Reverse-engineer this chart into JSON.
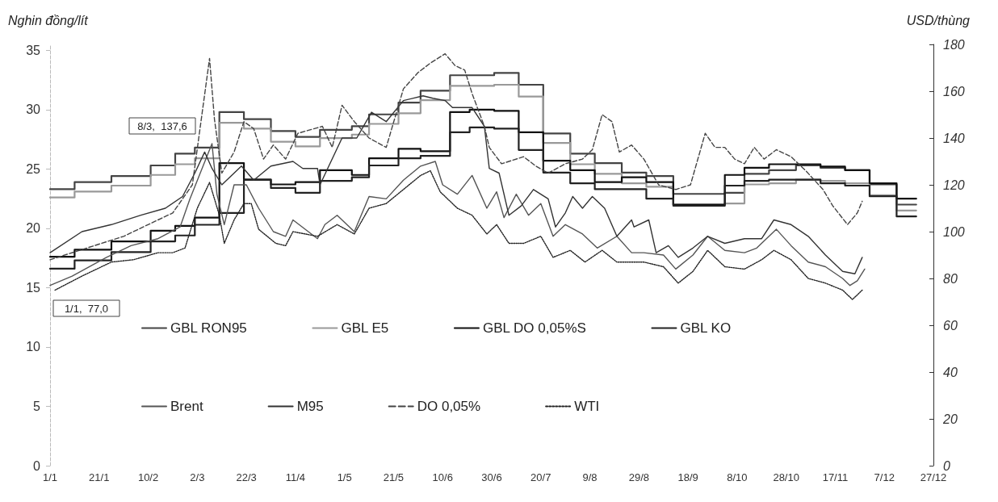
{
  "chart_data": {
    "type": "line",
    "ylabel": "Nghin đồng/lít",
    "y2label": "USD/thùng",
    "marker": "none",
    "legend": "bottom",
    "grid": false,
    "xlim": [
      "--01-01",
      "--12-27"
    ],
    "xticks": [
      {
        "value": "--01-01",
        "label": "1/1"
      },
      {
        "value": "--01-21",
        "label": "21/1"
      },
      {
        "value": "--02-10",
        "label": "10/2"
      },
      {
        "value": "--03-02",
        "label": "2/3"
      },
      {
        "value": "--03-22",
        "label": "22/3"
      },
      {
        "value": "--04-11",
        "label": "11/4"
      },
      {
        "value": "--05-01",
        "label": "1/5"
      },
      {
        "value": "--05-21",
        "label": "21/5"
      },
      {
        "value": "--06-10",
        "label": "10/6"
      },
      {
        "value": "--06-30",
        "label": "30/6"
      },
      {
        "value": "--07-20",
        "label": "20/7"
      },
      {
        "value": "--08-09",
        "label": "9/8"
      },
      {
        "value": "--08-29",
        "label": "29/8"
      },
      {
        "value": "--09-18",
        "label": "18/9"
      },
      {
        "value": "--10-08",
        "label": "8/10"
      },
      {
        "value": "--10-28",
        "label": "28/10"
      },
      {
        "value": "--11-17",
        "label": "17/11"
      },
      {
        "value": "--12-07",
        "label": "7/12"
      },
      {
        "value": "--12-27",
        "label": "27/12"
      }
    ],
    "ylim": [
      0,
      35.5
    ],
    "yticks": [
      0,
      5,
      10,
      15,
      20,
      25,
      30,
      35
    ],
    "y2lim": [
      0,
      180
    ],
    "y2ticks": [
      0,
      20,
      40,
      60,
      80,
      100,
      120,
      140,
      160,
      180
    ],
    "annotations": [
      "1/1,  77,0",
      "8/3,  137,6"
    ],
    "series": [
      {
        "name": "GBL RON95",
        "type": "step",
        "color": "#444444",
        "line_style": "solid",
        "x": [
          "--01-01",
          "--01-11",
          "--01-26",
          "--02-11",
          "--02-21",
          "--03-01",
          "--03-11",
          "--03-21",
          "--04-01",
          "--04-11",
          "--04-21",
          "--05-04",
          "--05-11",
          "--05-23",
          "--06-01",
          "--06-13",
          "--06-21",
          "--07-01",
          "--07-11",
          "--07-21",
          "--08-01",
          "--08-11",
          "--08-22",
          "--09-01",
          "--09-12",
          "--09-21",
          "--10-03",
          "--10-11",
          "--10-21",
          "--11-01",
          "--11-11",
          "--11-21",
          "--12-01",
          "--12-12",
          "--12-20"
        ],
        "values": [
          23.3,
          23.9,
          24.4,
          25.3,
          26.3,
          26.8,
          29.8,
          29.2,
          28.2,
          27.7,
          28.3,
          28.6,
          29.6,
          30.6,
          31.6,
          32.9,
          32.9,
          33.1,
          32.1,
          28.0,
          26.3,
          25.5,
          24.7,
          24.4,
          22.9,
          22.9,
          23.0,
          24.6,
          24.9,
          25.3,
          25.1,
          24.9,
          23.7,
          22.0,
          22.0
        ]
      },
      {
        "name": "GBL E5",
        "type": "step",
        "color": "#999999",
        "line_style": "solid",
        "x": [
          "--01-01",
          "--01-11",
          "--01-26",
          "--02-11",
          "--02-21",
          "--03-01",
          "--03-11",
          "--03-21",
          "--04-01",
          "--04-11",
          "--04-21",
          "--05-04",
          "--05-11",
          "--05-23",
          "--06-01",
          "--06-13",
          "--06-21",
          "--07-01",
          "--07-11",
          "--07-21",
          "--08-01",
          "--08-11",
          "--08-22",
          "--09-01",
          "--09-12",
          "--09-21",
          "--10-03",
          "--10-11",
          "--10-21",
          "--11-01",
          "--11-11",
          "--11-21",
          "--12-01",
          "--12-12",
          "--12-20"
        ],
        "values": [
          22.6,
          23.1,
          23.6,
          24.5,
          25.4,
          25.9,
          28.9,
          28.4,
          27.3,
          26.9,
          27.6,
          27.9,
          28.8,
          29.7,
          30.8,
          32.0,
          32.0,
          32.1,
          31.1,
          27.2,
          25.4,
          24.6,
          23.8,
          23.5,
          22.0,
          22.0,
          22.1,
          23.7,
          23.8,
          24.1,
          24.0,
          23.8,
          22.8,
          21.5,
          21.5
        ]
      },
      {
        "name": "GBL DO 0,05%S",
        "type": "step",
        "color": "#111111",
        "line_style": "solid",
        "x": [
          "--01-01",
          "--01-11",
          "--01-26",
          "--02-11",
          "--02-21",
          "--03-01",
          "--03-11",
          "--03-21",
          "--04-01",
          "--04-11",
          "--04-21",
          "--05-04",
          "--05-11",
          "--05-23",
          "--06-01",
          "--06-13",
          "--06-21",
          "--07-01",
          "--07-11",
          "--07-21",
          "--08-01",
          "--08-11",
          "--08-22",
          "--09-01",
          "--09-12",
          "--09-21",
          "--10-03",
          "--10-11",
          "--10-21",
          "--11-01",
          "--11-11",
          "--11-21",
          "--12-01",
          "--12-12",
          "--12-20"
        ],
        "values": [
          17.6,
          18.2,
          18.9,
          19.8,
          20.2,
          20.9,
          25.5,
          24.1,
          23.7,
          23.9,
          24.9,
          24.5,
          25.9,
          26.7,
          26.5,
          29.8,
          30.0,
          29.9,
          28.1,
          25.7,
          24.9,
          23.9,
          24.3,
          23.9,
          22.0,
          22.0,
          24.5,
          25.1,
          25.4,
          25.4,
          25.2,
          24.9,
          23.8,
          22.5,
          22.5
        ]
      },
      {
        "name": "GBL KO",
        "type": "step",
        "color": "#222222",
        "line_style": "solid",
        "x": [
          "--01-01",
          "--01-11",
          "--01-26",
          "--02-11",
          "--02-21",
          "--03-01",
          "--03-11",
          "--03-21",
          "--04-01",
          "--04-11",
          "--04-21",
          "--05-04",
          "--05-11",
          "--05-23",
          "--06-01",
          "--06-13",
          "--06-21",
          "--07-01",
          "--07-11",
          "--07-21",
          "--08-01",
          "--08-11",
          "--08-22",
          "--09-01",
          "--09-12",
          "--09-21",
          "--10-03",
          "--10-11",
          "--10-21",
          "--11-01",
          "--11-11",
          "--11-21",
          "--12-01",
          "--12-12",
          "--12-20"
        ],
        "values": [
          16.6,
          17.3,
          18.0,
          18.9,
          19.4,
          20.3,
          21.3,
          24.1,
          23.4,
          23.0,
          24.0,
          24.3,
          25.3,
          25.9,
          26.1,
          28.1,
          28.5,
          28.4,
          26.6,
          24.7,
          23.8,
          23.3,
          23.3,
          22.5,
          21.9,
          21.9,
          23.6,
          24.0,
          24.1,
          24.1,
          23.8,
          23.6,
          22.7,
          21.0,
          21.0
        ]
      },
      {
        "name": "Brent",
        "axis": "y2",
        "color": "#555555",
        "line_style": "solid",
        "x": [
          "--01-01",
          "--01-10",
          "--01-24",
          "--02-03",
          "--02-14",
          "--02-23",
          "--02-27",
          "--03-08",
          "--03-10",
          "--03-13",
          "--03-17",
          "--03-22",
          "--03-27",
          "--04-02",
          "--04-07",
          "--04-10",
          "--04-20",
          "--04-23",
          "--04-28",
          "--05-05",
          "--05-11",
          "--05-18",
          "--05-25",
          "--06-01",
          "--06-07",
          "--06-10",
          "--06-16",
          "--06-22",
          "--06-28",
          "--07-02",
          "--07-05",
          "--07-10",
          "--07-15",
          "--07-20",
          "--07-25",
          "--07-30",
          "--08-06",
          "--08-12",
          "--08-20",
          "--08-26",
          "--08-31",
          "--09-08",
          "--09-13",
          "--09-20",
          "--09-26",
          "--10-03",
          "--10-11",
          "--10-16",
          "--10-24",
          "--10-30",
          "--11-06",
          "--11-13",
          "--11-20",
          "--11-23",
          "--11-26",
          "--11-29"
        ],
        "values": [
          77,
          81,
          89,
          94,
          97,
          102,
          114,
          137.6,
          116,
          103,
          120,
          120,
          110,
          100,
          98,
          105,
          97,
          103,
          107,
          100,
          115,
          114,
          122,
          128,
          130,
          120,
          116,
          124,
          110,
          117,
          106,
          116,
          107,
          112,
          98,
          103,
          99,
          93,
          98,
          91,
          91,
          90,
          84,
          90,
          98,
          92,
          91,
          93,
          101,
          94,
          87,
          85,
          80,
          77,
          79,
          84
        ]
      },
      {
        "name": "M95",
        "axis": "y2",
        "color": "#333333",
        "line_style": "solid",
        "x": [
          "--01-01",
          "--01-14",
          "--01-26",
          "--02-07",
          "--02-17",
          "--02-24",
          "--03-01",
          "--03-05",
          "--03-08",
          "--03-12",
          "--03-20",
          "--03-25",
          "--04-01",
          "--04-10",
          "--04-14",
          "--04-20",
          "--04-21",
          "--04-30",
          "--05-06",
          "--05-12",
          "--05-18",
          "--05-25",
          "--06-02",
          "--06-06",
          "--06-11",
          "--06-14",
          "--06-22",
          "--06-27",
          "--06-29",
          "--07-03",
          "--07-07",
          "--07-12",
          "--07-17",
          "--07-23",
          "--07-26",
          "--07-30",
          "--08-02",
          "--08-06",
          "--08-10",
          "--08-15",
          "--08-20",
          "--08-26",
          "--08-27",
          "--09-02",
          "--09-05",
          "--09-10",
          "--09-14",
          "--09-20",
          "--09-26",
          "--10-03",
          "--10-11",
          "--10-18",
          "--10-23",
          "--10-30",
          "--11-06",
          "--11-13",
          "--11-20",
          "--11-25",
          "--11-28"
        ],
        "values": [
          91,
          100,
          103,
          107,
          110,
          115,
          125,
          134,
          127,
          120,
          128,
          122,
          128,
          130,
          127,
          127,
          120,
          140,
          140,
          151,
          147,
          156,
          158,
          157,
          156,
          153,
          153,
          145,
          127,
          125,
          107,
          111,
          118,
          114,
          102,
          108,
          115,
          110,
          115,
          110,
          98,
          105,
          102,
          105,
          91,
          94,
          89,
          93,
          98,
          95,
          97,
          97,
          105,
          103,
          98,
          90,
          83,
          82,
          89
        ]
      },
      {
        "name": "DO 0,05%",
        "axis": "y2",
        "color": "#444444",
        "line_style": "dashed",
        "x": [
          "--01-01",
          "--01-31",
          "--02-20",
          "--02-28",
          "--03-07",
          "--03-09",
          "--03-12",
          "--03-17",
          "--03-21",
          "--03-25",
          "--03-29",
          "--04-02",
          "--04-07",
          "--04-12",
          "--04-22",
          "--04-26",
          "--04-30",
          "--05-05",
          "--05-11",
          "--05-18",
          "--05-25",
          "--05-31",
          "--06-05",
          "--06-11",
          "--06-15",
          "--06-19",
          "--06-22",
          "--06-27",
          "--06-29",
          "--07-04",
          "--07-13",
          "--07-18",
          "--07-23",
          "--07-30",
          "--08-06",
          "--08-10",
          "--08-14",
          "--08-18",
          "--08-21",
          "--08-26",
          "--08-31",
          "--09-06",
          "--09-13",
          "--09-19",
          "--09-25",
          "--09-29",
          "--10-03",
          "--10-07",
          "--10-11",
          "--10-15",
          "--10-19",
          "--10-24",
          "--10-30",
          "--11-05",
          "--11-12",
          "--11-16",
          "--11-22",
          "--11-26",
          "--11-28"
        ],
        "values": [
          88,
          98,
          108,
          120,
          174,
          148,
          125,
          134,
          147,
          144,
          131,
          137,
          131,
          142,
          145,
          136,
          154,
          147,
          140,
          136,
          161,
          168,
          172,
          176,
          171,
          169,
          159,
          145,
          136,
          129,
          132,
          128,
          125,
          129,
          131,
          135,
          150,
          147,
          134,
          137,
          131,
          120,
          118,
          120,
          142,
          136,
          136,
          131,
          129,
          136,
          131,
          135,
          132,
          126,
          118,
          111,
          103,
          108,
          113
        ]
      },
      {
        "name": "WTI",
        "axis": "y2",
        "color": "#222222",
        "line_style": "dotted",
        "x": [
          "--01-03",
          "--01-14",
          "--01-26",
          "--02-04",
          "--02-14",
          "--02-20",
          "--02-25",
          "--03-02",
          "--03-07",
          "--03-11",
          "--03-13",
          "--03-17",
          "--03-21",
          "--03-24",
          "--03-27",
          "--04-03",
          "--04-07",
          "--04-10",
          "--04-20",
          "--04-28",
          "--05-05",
          "--05-11",
          "--05-18",
          "--05-25",
          "--06-01",
          "--06-05",
          "--06-09",
          "--06-16",
          "--06-22",
          "--06-28",
          "--07-02",
          "--07-07",
          "--07-13",
          "--07-20",
          "--07-25",
          "--08-01",
          "--08-07",
          "--08-14",
          "--08-20",
          "--08-26",
          "--08-31",
          "--09-08",
          "--09-14",
          "--09-20",
          "--09-26",
          "--10-03",
          "--10-11",
          "--10-18",
          "--10-23",
          "--10-30",
          "--11-06",
          "--11-13",
          "--11-20",
          "--11-24",
          "--11-28"
        ],
        "values": [
          75,
          81,
          87,
          88,
          91,
          91,
          93,
          110,
          121,
          107,
          95,
          105,
          112,
          112,
          101,
          95,
          94,
          100,
          98,
          103,
          99,
          110,
          112,
          118,
          124,
          126,
          117,
          110,
          107,
          99,
          103,
          95,
          95,
          98,
          89,
          92,
          87,
          92,
          87,
          87,
          87,
          85,
          78,
          83,
          92,
          85,
          84,
          88,
          92,
          88,
          80,
          78,
          75,
          71,
          75
        ]
      }
    ]
  }
}
